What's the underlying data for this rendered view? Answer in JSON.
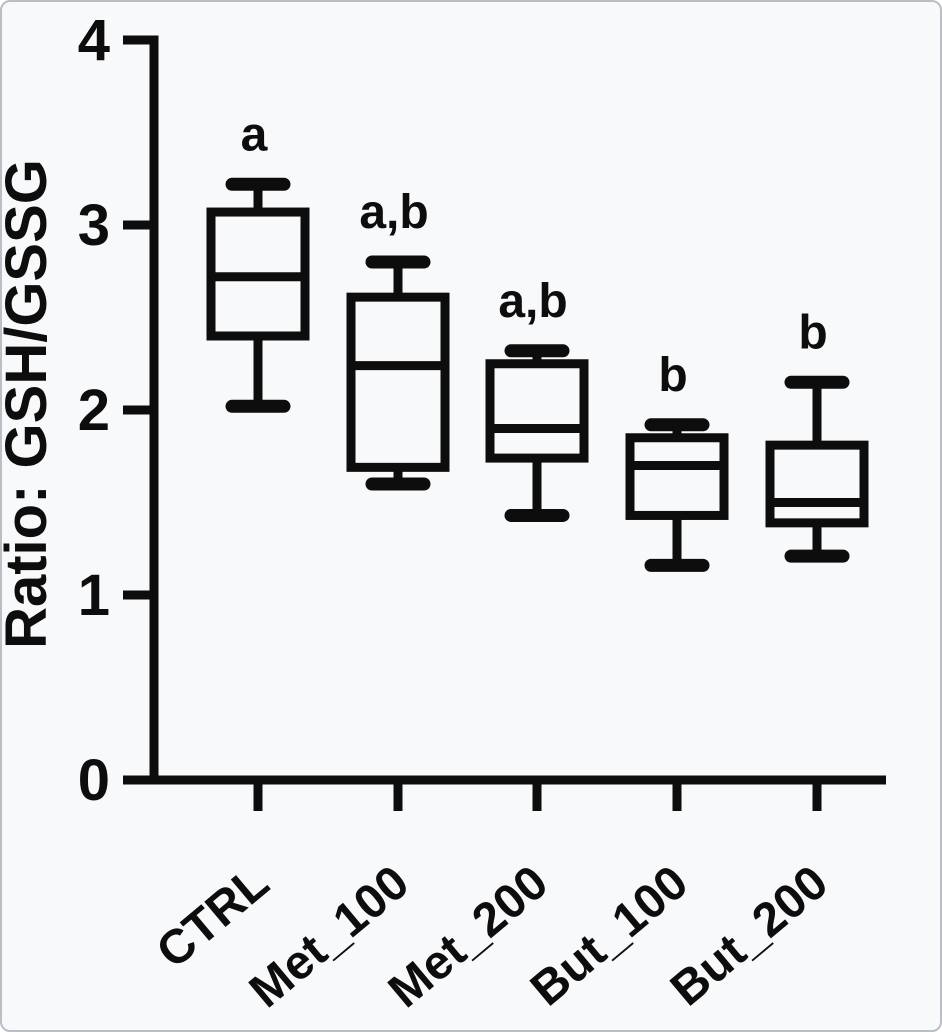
{
  "figure": {
    "background": "#f8f9fa",
    "border_color": "#b9bfc4",
    "ink_color": "#0d0d0d"
  },
  "chart_data": {
    "type": "box",
    "title": "",
    "xlabel": "",
    "ylabel": "Ratio: GSH/GSSG",
    "ylim": [
      0,
      4
    ],
    "yticks": [
      0,
      1,
      2,
      3,
      4
    ],
    "grid": false,
    "legend_position": "none",
    "categories": [
      "CTRL",
      "Met_100",
      "Met_200",
      "But_100",
      "But_200"
    ],
    "series": [
      {
        "category": "CTRL",
        "whisker_low": 2.02,
        "q1": 2.4,
        "median": 2.72,
        "q3": 3.07,
        "whisker_high": 3.22,
        "annotation": "a"
      },
      {
        "category": "Met_100",
        "whisker_low": 1.6,
        "q1": 1.69,
        "median": 2.24,
        "q3": 2.61,
        "whisker_high": 2.8,
        "annotation": "a,b"
      },
      {
        "category": "Met_200",
        "whisker_low": 1.43,
        "q1": 1.74,
        "median": 1.9,
        "q3": 2.25,
        "whisker_high": 2.32,
        "annotation": "a,b"
      },
      {
        "category": "But_100",
        "whisker_low": 1.16,
        "q1": 1.43,
        "median": 1.7,
        "q3": 1.85,
        "whisker_high": 1.92,
        "annotation": "b"
      },
      {
        "category": "But_200",
        "whisker_low": 1.21,
        "q1": 1.39,
        "median": 1.5,
        "q3": 1.81,
        "whisker_high": 2.15,
        "annotation": "b"
      }
    ]
  }
}
